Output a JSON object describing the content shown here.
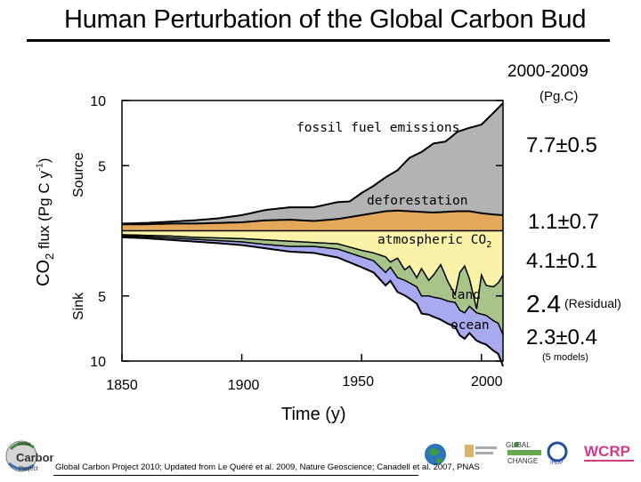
{
  "title": "Human Perturbation of the Global Carbon Bud",
  "period_label": "2000-2009",
  "unit_label": "(Pg.C)",
  "y_axis": {
    "label_main": "CO",
    "label_sub": "2",
    "label_rest": " flux (Pg C y",
    "label_sup": "-1",
    "label_end": ")",
    "source_label": "Source",
    "sink_label": "Sink"
  },
  "x_axis_label": "Time (y)",
  "stats": {
    "fossil": "7.7±0.5",
    "deforestation": "1.1±0.7",
    "atmospheric": "4.1±0.1",
    "land": "2.4",
    "land_note": "(Residual)",
    "ocean": "2.3±0.4",
    "ocean_note": "(5 models)"
  },
  "footer": "Global Carbon Project 2010; Updated from Le Quéré et al. 2009, Nature Geoscience; Canadell et al. 2007, PNAS",
  "logos": [
    "global-carbon-project-logo",
    "earth-logo",
    "esip-logo",
    "global-change-logo",
    "ihdp-logo",
    "wcrp-logo"
  ],
  "logo_text": {
    "gcp_small": "Global",
    "gcp_big": "Carbon",
    "gcp_big2": "Project",
    "global_change": "GLOBAL CHANGE",
    "wcrp": "WCRP",
    "ihdp": "IHDP"
  },
  "chart_data": {
    "type": "area",
    "xlim": [
      1850,
      2009
    ],
    "ylim": [
      -10,
      10
    ],
    "y_tick_labels": [
      "10",
      "5",
      "5",
      "10"
    ],
    "y_tick_values": [
      10,
      5,
      -5,
      -10
    ],
    "x_tick_labels": [
      "1850",
      "1900",
      "1950",
      "2000"
    ],
    "x_tick_values": [
      1850,
      1900,
      1950,
      2000
    ],
    "colors": {
      "fossil": "#b3b3b3",
      "deforestation": "#e3a85a",
      "atmospheric": "#fbf3a8",
      "land": "#a8c48a",
      "ocean": "#a9a9f0",
      "line": "#000000"
    },
    "series": [
      {
        "name": "fossil fuel emissions",
        "x": [
          1850,
          1860,
          1870,
          1880,
          1890,
          1900,
          1910,
          1920,
          1930,
          1940,
          1945,
          1950,
          1955,
          1960,
          1965,
          1970,
          1975,
          1980,
          1985,
          1990,
          1995,
          2000,
          2005,
          2009
        ],
        "values": [
          0.05,
          0.1,
          0.15,
          0.25,
          0.35,
          0.55,
          0.8,
          0.95,
          1.05,
          1.3,
          1.2,
          1.7,
          2.1,
          2.6,
          3.1,
          4.1,
          4.6,
          5.3,
          5.4,
          6.1,
          6.4,
          6.8,
          7.8,
          8.6
        ]
      },
      {
        "name": "deforestation",
        "x": [
          1850,
          1860,
          1870,
          1880,
          1890,
          1900,
          1910,
          1920,
          1930,
          1940,
          1950,
          1955,
          1960,
          1965,
          1970,
          1975,
          1980,
          1985,
          1990,
          1995,
          2000,
          2005,
          2009
        ],
        "values": [
          0.5,
          0.5,
          0.55,
          0.55,
          0.6,
          0.65,
          0.8,
          0.85,
          0.75,
          0.9,
          1.2,
          1.35,
          1.5,
          1.55,
          1.5,
          1.45,
          1.4,
          1.45,
          1.5,
          1.5,
          1.35,
          1.25,
          1.2
        ]
      },
      {
        "name": "atmospheric CO2",
        "x": [
          1850,
          1860,
          1870,
          1880,
          1890,
          1900,
          1910,
          1920,
          1930,
          1940,
          1950,
          1955,
          1960,
          1962,
          1965,
          1968,
          1970,
          1973,
          1975,
          1978,
          1980,
          1983,
          1986,
          1989,
          1991,
          1993,
          1995,
          1998,
          2000,
          2002,
          2005,
          2007,
          2009
        ],
        "values": [
          -0.3,
          -0.35,
          -0.4,
          -0.5,
          -0.55,
          -0.6,
          -0.7,
          -0.8,
          -0.9,
          -1.0,
          -1.5,
          -1.7,
          -2.0,
          -2.4,
          -2.1,
          -3.0,
          -2.7,
          -3.6,
          -2.9,
          -3.8,
          -3.4,
          -2.6,
          -3.9,
          -4.9,
          -3.2,
          -2.7,
          -3.7,
          -6.0,
          -3.4,
          -4.2,
          -4.3,
          -4.0,
          -3.4
        ]
      },
      {
        "name": "land",
        "x": [
          1850,
          1860,
          1870,
          1880,
          1890,
          1900,
          1910,
          1920,
          1930,
          1940,
          1950,
          1955,
          1960,
          1962,
          1965,
          1968,
          1970,
          1973,
          1975,
          1978,
          1980,
          1983,
          1986,
          1989,
          1991,
          1993,
          1995,
          1998,
          2000,
          2002,
          2005,
          2007,
          2009
        ],
        "values": [
          -0.1,
          -0.1,
          -0.15,
          -0.15,
          -0.2,
          -0.25,
          -0.35,
          -0.4,
          -0.3,
          -0.4,
          -0.5,
          -0.6,
          -1.2,
          -0.4,
          -1.5,
          -0.8,
          -1.3,
          -0.7,
          -2.1,
          -1.2,
          -1.7,
          -2.6,
          -1.5,
          -0.6,
          -2.9,
          -3.6,
          -2.1,
          -0.3,
          -3.0,
          -2.3,
          -2.6,
          -3.1,
          -4.6
        ]
      },
      {
        "name": "ocean",
        "x": [
          1850,
          1870,
          1890,
          1910,
          1930,
          1950,
          1960,
          1970,
          1980,
          1990,
          2000,
          2005,
          2009
        ],
        "values": [
          -0.1,
          -0.15,
          -0.2,
          -0.3,
          -0.5,
          -0.8,
          -1.0,
          -1.2,
          -1.5,
          -1.9,
          -2.2,
          -2.3,
          -2.4
        ]
      }
    ],
    "annotations": [
      "fossil fuel emissions",
      "deforestation",
      "atmospheric CO",
      "2",
      "land",
      "ocean"
    ]
  }
}
